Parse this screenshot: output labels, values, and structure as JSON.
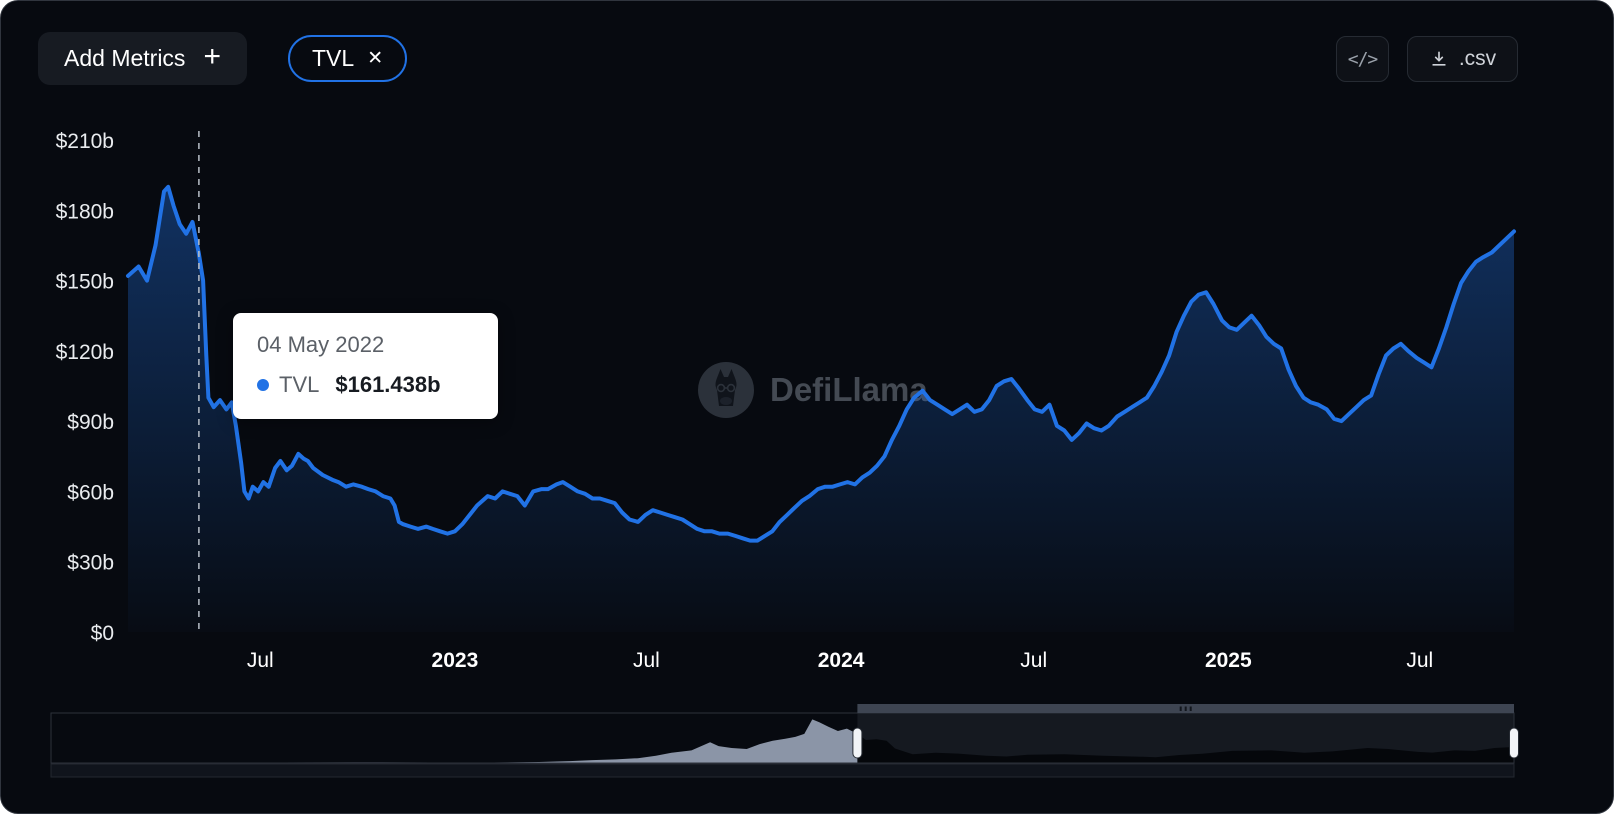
{
  "toolbar": {
    "add_metrics_label": "Add Metrics",
    "plus_glyph": "+",
    "metric_pill": {
      "label": "TVL",
      "close_glyph": "✕"
    },
    "embed_icon_glyph": "</>",
    "csv_label": ".csv"
  },
  "tooltip": {
    "date": "04 May 2022",
    "series": "TVL",
    "value": "$161.438b",
    "dot_color": "#2172e5"
  },
  "watermark": {
    "text": "DefiLlama"
  },
  "colors": {
    "line": "#2172e5",
    "pill_border": "#2172e5",
    "panel_bg": "#070a10",
    "tooltip_bg": "#ffffff"
  },
  "chart_data": {
    "type": "area",
    "title": "TVL",
    "series_name": "TVL",
    "unit": "USD billions",
    "line_color": "#2172e5",
    "grid": false,
    "legend_position": "none",
    "ylim": [
      0,
      210
    ],
    "x_range": [
      "2022-02-26",
      "2025-09-28"
    ],
    "y_ticks": [
      {
        "label": "$0",
        "value": 0
      },
      {
        "label": "$30b",
        "value": 30
      },
      {
        "label": "$60b",
        "value": 60
      },
      {
        "label": "$90b",
        "value": 90
      },
      {
        "label": "$120b",
        "value": 120
      },
      {
        "label": "$150b",
        "value": 150
      },
      {
        "label": "$180b",
        "value": 180
      },
      {
        "label": "$210b",
        "value": 210
      }
    ],
    "x_ticks": [
      {
        "label": "Jul",
        "date": "2022-07-01"
      },
      {
        "label": "2023",
        "date": "2023-01-01"
      },
      {
        "label": "Jul",
        "date": "2023-07-01"
      },
      {
        "label": "2024",
        "date": "2024-01-01"
      },
      {
        "label": "Jul",
        "date": "2024-07-01"
      },
      {
        "label": "2025",
        "date": "2025-01-01"
      },
      {
        "label": "Jul",
        "date": "2025-07-01"
      }
    ],
    "highlight": {
      "date": "2022-05-04",
      "value": 161.438
    },
    "points": [
      [
        "2022-02-26",
        152
      ],
      [
        "2022-03-08",
        156
      ],
      [
        "2022-03-16",
        150
      ],
      [
        "2022-03-24",
        165
      ],
      [
        "2022-04-01",
        188
      ],
      [
        "2022-04-05",
        190
      ],
      [
        "2022-04-10",
        182
      ],
      [
        "2022-04-16",
        174
      ],
      [
        "2022-04-22",
        170
      ],
      [
        "2022-04-28",
        175
      ],
      [
        "2022-05-04",
        161.438
      ],
      [
        "2022-05-08",
        150
      ],
      [
        "2022-05-11",
        118
      ],
      [
        "2022-05-13",
        100
      ],
      [
        "2022-05-18",
        96
      ],
      [
        "2022-05-24",
        99
      ],
      [
        "2022-05-30",
        95
      ],
      [
        "2022-06-04",
        98
      ],
      [
        "2022-06-08",
        88
      ],
      [
        "2022-06-13",
        72
      ],
      [
        "2022-06-16",
        60
      ],
      [
        "2022-06-20",
        57
      ],
      [
        "2022-06-24",
        62
      ],
      [
        "2022-06-29",
        60
      ],
      [
        "2022-07-04",
        64
      ],
      [
        "2022-07-09",
        62
      ],
      [
        "2022-07-15",
        70
      ],
      [
        "2022-07-20",
        73
      ],
      [
        "2022-07-26",
        69
      ],
      [
        "2022-07-31",
        71
      ],
      [
        "2022-08-06",
        76
      ],
      [
        "2022-08-11",
        74
      ],
      [
        "2022-08-15",
        73
      ],
      [
        "2022-08-20",
        70
      ],
      [
        "2022-08-29",
        67
      ],
      [
        "2022-09-07",
        65
      ],
      [
        "2022-09-13",
        64
      ],
      [
        "2022-09-20",
        62
      ],
      [
        "2022-09-27",
        63
      ],
      [
        "2022-10-05",
        62
      ],
      [
        "2022-10-11",
        61
      ],
      [
        "2022-10-18",
        60
      ],
      [
        "2022-10-25",
        58
      ],
      [
        "2022-11-01",
        57
      ],
      [
        "2022-11-05",
        54
      ],
      [
        "2022-11-09",
        47
      ],
      [
        "2022-11-13",
        46
      ],
      [
        "2022-11-20",
        45
      ],
      [
        "2022-11-27",
        44
      ],
      [
        "2022-12-05",
        45
      ],
      [
        "2022-12-11",
        44
      ],
      [
        "2022-12-18",
        43
      ],
      [
        "2022-12-25",
        42
      ],
      [
        "2023-01-01",
        43
      ],
      [
        "2023-01-08",
        46
      ],
      [
        "2023-01-15",
        50
      ],
      [
        "2023-01-22",
        54
      ],
      [
        "2023-02-01",
        58
      ],
      [
        "2023-02-08",
        57
      ],
      [
        "2023-02-15",
        60
      ],
      [
        "2023-02-22",
        59
      ],
      [
        "2023-03-01",
        58
      ],
      [
        "2023-03-08",
        54
      ],
      [
        "2023-03-16",
        60
      ],
      [
        "2023-03-24",
        61
      ],
      [
        "2023-03-30",
        61
      ],
      [
        "2023-04-07",
        63
      ],
      [
        "2023-04-13",
        64
      ],
      [
        "2023-04-20",
        62
      ],
      [
        "2023-04-27",
        60
      ],
      [
        "2023-05-04",
        59
      ],
      [
        "2023-05-11",
        57
      ],
      [
        "2023-05-18",
        57
      ],
      [
        "2023-05-25",
        56
      ],
      [
        "2023-06-01",
        55
      ],
      [
        "2023-06-08",
        51
      ],
      [
        "2023-06-15",
        48
      ],
      [
        "2023-06-23",
        47
      ],
      [
        "2023-06-30",
        50
      ],
      [
        "2023-07-07",
        52
      ],
      [
        "2023-07-14",
        51
      ],
      [
        "2023-07-21",
        50
      ],
      [
        "2023-07-28",
        49
      ],
      [
        "2023-08-04",
        48
      ],
      [
        "2023-08-11",
        46
      ],
      [
        "2023-08-18",
        44
      ],
      [
        "2023-08-25",
        43
      ],
      [
        "2023-09-01",
        43
      ],
      [
        "2023-09-08",
        42
      ],
      [
        "2023-09-16",
        42
      ],
      [
        "2023-09-23",
        41
      ],
      [
        "2023-09-30",
        40
      ],
      [
        "2023-10-07",
        39
      ],
      [
        "2023-10-14",
        39
      ],
      [
        "2023-10-21",
        41
      ],
      [
        "2023-10-28",
        43
      ],
      [
        "2023-11-04",
        47
      ],
      [
        "2023-11-11",
        50
      ],
      [
        "2023-11-18",
        53
      ],
      [
        "2023-11-25",
        56
      ],
      [
        "2023-12-02",
        58
      ],
      [
        "2023-12-10",
        61
      ],
      [
        "2023-12-17",
        62
      ],
      [
        "2023-12-24",
        62
      ],
      [
        "2023-12-31",
        63
      ],
      [
        "2024-01-07",
        64
      ],
      [
        "2024-01-14",
        63
      ],
      [
        "2024-01-21",
        66
      ],
      [
        "2024-01-28",
        68
      ],
      [
        "2024-02-04",
        71
      ],
      [
        "2024-02-11",
        75
      ],
      [
        "2024-02-18",
        82
      ],
      [
        "2024-02-25",
        88
      ],
      [
        "2024-03-03",
        95
      ],
      [
        "2024-03-10",
        100
      ],
      [
        "2024-03-18",
        103
      ],
      [
        "2024-03-25",
        99
      ],
      [
        "2024-04-01",
        97
      ],
      [
        "2024-04-08",
        95
      ],
      [
        "2024-04-15",
        93
      ],
      [
        "2024-04-22",
        95
      ],
      [
        "2024-04-29",
        97
      ],
      [
        "2024-05-06",
        94
      ],
      [
        "2024-05-13",
        95
      ],
      [
        "2024-05-20",
        99
      ],
      [
        "2024-05-27",
        105
      ],
      [
        "2024-06-03",
        107
      ],
      [
        "2024-06-10",
        108
      ],
      [
        "2024-06-17",
        104
      ],
      [
        "2024-06-25",
        99
      ],
      [
        "2024-07-02",
        95
      ],
      [
        "2024-07-09",
        94
      ],
      [
        "2024-07-16",
        97
      ],
      [
        "2024-07-23",
        88
      ],
      [
        "2024-07-30",
        86
      ],
      [
        "2024-08-06",
        82
      ],
      [
        "2024-08-13",
        85
      ],
      [
        "2024-08-20",
        89
      ],
      [
        "2024-08-27",
        87
      ],
      [
        "2024-09-03",
        86
      ],
      [
        "2024-09-10",
        88
      ],
      [
        "2024-09-18",
        92
      ],
      [
        "2024-09-25",
        94
      ],
      [
        "2024-10-02",
        96
      ],
      [
        "2024-10-09",
        98
      ],
      [
        "2024-10-16",
        100
      ],
      [
        "2024-10-23",
        105
      ],
      [
        "2024-10-30",
        111
      ],
      [
        "2024-11-06",
        118
      ],
      [
        "2024-11-13",
        128
      ],
      [
        "2024-11-20",
        135
      ],
      [
        "2024-11-27",
        141
      ],
      [
        "2024-12-04",
        144
      ],
      [
        "2024-12-11",
        145
      ],
      [
        "2024-12-18",
        140
      ],
      [
        "2024-12-26",
        133
      ],
      [
        "2025-01-02",
        130
      ],
      [
        "2025-01-09",
        129
      ],
      [
        "2025-01-16",
        132
      ],
      [
        "2025-01-23",
        135
      ],
      [
        "2025-01-30",
        131
      ],
      [
        "2025-02-06",
        126
      ],
      [
        "2025-02-13",
        123
      ],
      [
        "2025-02-20",
        121
      ],
      [
        "2025-02-27",
        112
      ],
      [
        "2025-03-06",
        105
      ],
      [
        "2025-03-13",
        100
      ],
      [
        "2025-03-20",
        98
      ],
      [
        "2025-03-27",
        97
      ],
      [
        "2025-04-04",
        95
      ],
      [
        "2025-04-11",
        91
      ],
      [
        "2025-04-18",
        90
      ],
      [
        "2025-04-25",
        93
      ],
      [
        "2025-05-02",
        96
      ],
      [
        "2025-05-09",
        99
      ],
      [
        "2025-05-16",
        101
      ],
      [
        "2025-05-23",
        110
      ],
      [
        "2025-05-30",
        118
      ],
      [
        "2025-06-06",
        121
      ],
      [
        "2025-06-13",
        123
      ],
      [
        "2025-06-20",
        120
      ],
      [
        "2025-06-28",
        117
      ],
      [
        "2025-07-05",
        115
      ],
      [
        "2025-07-12",
        113
      ],
      [
        "2025-07-19",
        121
      ],
      [
        "2025-07-26",
        130
      ],
      [
        "2025-08-02",
        140
      ],
      [
        "2025-08-09",
        149
      ],
      [
        "2025-08-16",
        154
      ],
      [
        "2025-08-23",
        158
      ],
      [
        "2025-08-30",
        160
      ],
      [
        "2025-09-07",
        162
      ],
      [
        "2025-09-14",
        165
      ],
      [
        "2025-09-21",
        168
      ],
      [
        "2025-09-28",
        171
      ]
    ]
  },
  "brush": {
    "type": "area",
    "ylim": [
      0,
      190
    ],
    "window": {
      "start": "2022-02-26",
      "end": "2025-09-28"
    },
    "points": [
      [
        "2017-10-01",
        1
      ],
      [
        "2018-03-01",
        1.5
      ],
      [
        "2018-08-01",
        2
      ],
      [
        "2019-01-01",
        2
      ],
      [
        "2019-06-01",
        2.5
      ],
      [
        "2019-11-01",
        2
      ],
      [
        "2020-03-01",
        2
      ],
      [
        "2020-06-01",
        4
      ],
      [
        "2020-08-01",
        8
      ],
      [
        "2020-09-15",
        12
      ],
      [
        "2020-11-01",
        15
      ],
      [
        "2020-12-15",
        20
      ],
      [
        "2021-01-20",
        30
      ],
      [
        "2021-02-20",
        42
      ],
      [
        "2021-04-01",
        52
      ],
      [
        "2021-05-08",
        86
      ],
      [
        "2021-05-25",
        70
      ],
      [
        "2021-06-20",
        62
      ],
      [
        "2021-07-20",
        58
      ],
      [
        "2021-08-15",
        78
      ],
      [
        "2021-09-10",
        92
      ],
      [
        "2021-10-05",
        100
      ],
      [
        "2021-10-25",
        108
      ],
      [
        "2021-11-12",
        120
      ],
      [
        "2021-11-28",
        180
      ],
      [
        "2021-12-12",
        168
      ],
      [
        "2021-12-30",
        150
      ],
      [
        "2022-01-18",
        132
      ],
      [
        "2022-02-05",
        142
      ],
      [
        "2022-02-26",
        120
      ],
      [
        "2022-03-15",
        95
      ],
      [
        "2022-04-05",
        98
      ],
      [
        "2022-04-25",
        92
      ],
      [
        "2022-05-12",
        60
      ],
      [
        "2022-06-16",
        36
      ],
      [
        "2022-08-01",
        42
      ],
      [
        "2022-09-15",
        39
      ],
      [
        "2022-11-10",
        30
      ],
      [
        "2022-12-20",
        27
      ],
      [
        "2023-02-01",
        34
      ],
      [
        "2023-04-15",
        36
      ],
      [
        "2023-07-01",
        30
      ],
      [
        "2023-09-15",
        26
      ],
      [
        "2023-10-14",
        24
      ],
      [
        "2023-12-01",
        33
      ],
      [
        "2024-01-15",
        38
      ],
      [
        "2024-03-15",
        50
      ],
      [
        "2024-06-01",
        52
      ],
      [
        "2024-08-06",
        42
      ],
      [
        "2024-10-01",
        48
      ],
      [
        "2024-12-10",
        62
      ],
      [
        "2025-01-20",
        58
      ],
      [
        "2025-03-20",
        46
      ],
      [
        "2025-04-18",
        43
      ],
      [
        "2025-06-01",
        52
      ],
      [
        "2025-07-12",
        50
      ],
      [
        "2025-08-20",
        62
      ],
      [
        "2025-09-28",
        66
      ]
    ]
  }
}
